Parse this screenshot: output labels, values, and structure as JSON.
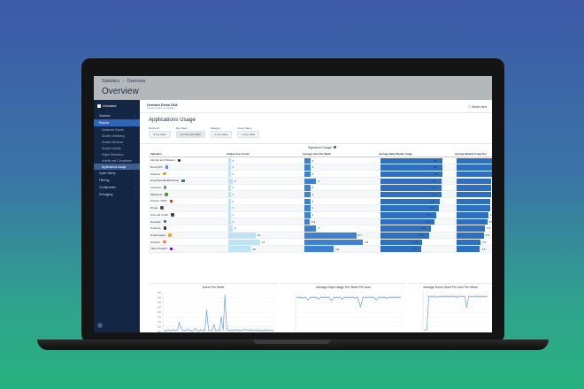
{
  "header": {
    "breadcrumb": [
      "Statistics",
      "Overview"
    ],
    "breadcrumb_sep": "›",
    "title": "Overview"
  },
  "sidebar": {
    "brand": "Linewize",
    "items": [
      {
        "label": "Statistics",
        "chevron": "›",
        "active": false,
        "sub": false
      },
      {
        "label": "Reports",
        "chevron": "⌄",
        "active": true,
        "sub": false
      },
      {
        "label": "Advanced Search",
        "active": false,
        "sub": true
      },
      {
        "label": "Student Wellbeing",
        "active": false,
        "sub": true
      },
      {
        "label": "Student Behavior",
        "active": false,
        "sub": true
      },
      {
        "label": "Student Activity",
        "active": false,
        "sub": true
      },
      {
        "label": "Digital Distraction",
        "active": false,
        "sub": true
      },
      {
        "label": "Activity and Compliance",
        "active": false,
        "sub": true
      },
      {
        "label": "Applications Usage",
        "active": true,
        "sub": true
      },
      {
        "label": "Cyber Safety",
        "chevron": "›",
        "active": false,
        "sub": false
      },
      {
        "label": "Filtering",
        "chevron": "›",
        "active": false,
        "sub": false
      },
      {
        "label": "Configuration",
        "chevron": "›",
        "active": false,
        "sub": false
      },
      {
        "label": "Debugging",
        "chevron": "›",
        "active": false,
        "sub": false
      }
    ],
    "collapse_icon": "‹"
  },
  "main": {
    "org_name": "Linewize Demo USA",
    "org_sub": "Sample district, somewhere",
    "whats_new": "What's New",
    "section_title": "Applications Usage",
    "filters": [
      {
        "label": "Device ID",
        "value": "is any value"
      },
      {
        "label": "Day Week",
        "value": "is in the year 2023"
      },
      {
        "label": "Category",
        "value": "is any value"
      },
      {
        "label": "Group Name",
        "value": "is any value"
      }
    ]
  },
  "table": {
    "title": "Signature Usage",
    "columns": [
      "Signature",
      "Unique User Count",
      "Average Uses Per Week",
      "Average Daily Weekly Usage",
      "Average Weekly Usage Per"
    ],
    "max": {
      "unique": 14,
      "uses": 9.8,
      "daily": 6.8,
      "weekly": 6.8
    },
    "rows": [
      {
        "name": "Alcohol and Tobacco",
        "icon": "bottle-icon",
        "color": "#333333",
        "unique": 1,
        "uses": 1.0,
        "daily": 6.8,
        "weekly": 6.8
      },
      {
        "name": "Nord VPN",
        "icon": "nordvpn-icon",
        "color": "#4687ff",
        "unique": 1,
        "uses": 1.0,
        "daily": 6.8,
        "weekly": 6.8
      },
      {
        "name": "Ultrasurf",
        "icon": "ultrasurf-icon",
        "color": "#e0a32a",
        "unique": 1,
        "uses": 1.0,
        "daily": 6.8,
        "weekly": 6.8
      },
      {
        "name": "Encyclopedia Britannica",
        "icon": "britannica-icon",
        "color": "#2f6fb5",
        "unique": 2,
        "uses": 2.0,
        "daily": 6.7,
        "weekly": 6.7
      },
      {
        "name": "Learning",
        "icon": "book-icon",
        "color": "#7a8ea8",
        "unique": 1,
        "uses": 1.0,
        "daily": 6.7,
        "weekly": 6.7
      },
      {
        "name": "Marijuana",
        "icon": "leaf-icon",
        "color": "#4c9a2a",
        "unique": 1,
        "uses": 1.0,
        "daily": 6.7,
        "weekly": 6.7
      },
      {
        "name": "Choceu VPNs",
        "icon": "vpn-icon",
        "color": "#c0392b",
        "unique": 1,
        "uses": 1.0,
        "daily": 6.5,
        "weekly": 6.5
      },
      {
        "name": "Drugs",
        "icon": "pill-icon",
        "color": "#555555",
        "unique": 1,
        "uses": 1.0,
        "daily": 6.4,
        "weekly": 6.4
      },
      {
        "name": "Arts and Crafts",
        "icon": "brush-icon",
        "color": "#444444",
        "unique": 1,
        "uses": 1.0,
        "daily": 6.1,
        "weekly": 6.1
      },
      {
        "name": "Gravatar",
        "icon": "gravatar-icon",
        "color": "#1e73be",
        "unique": 1,
        "uses": 0.9,
        "daily": 5.9,
        "weekly": 5.9
      },
      {
        "name": "Celebrity",
        "icon": "camera-icon",
        "color": "#333333",
        "unique": 2,
        "uses": 2.0,
        "daily": 5.5,
        "weekly": 5.5
      },
      {
        "name": "Snapengage",
        "icon": "snapengage-icon",
        "color": "#f5a623",
        "unique": 12,
        "uses": 8.7,
        "daily": 5.3,
        "weekly": 5.3
      },
      {
        "name": "Hubspot",
        "icon": "hubspot-icon",
        "color": "#ff7a59",
        "unique": 14,
        "uses": 9.8,
        "daily": 4.6,
        "weekly": 4.6
      },
      {
        "name": "Yahoo Search",
        "icon": "yahoo-icon",
        "color": "#6001d2",
        "unique": 10,
        "uses": 4.9,
        "daily": 4.5,
        "weekly": 4.5
      }
    ]
  },
  "chart_data": [
    {
      "type": "line",
      "title": "Users Per Week",
      "ylim": [
        0,
        260
      ],
      "y_ticks": [
        "260",
        "240",
        "220",
        "200",
        "180",
        "160",
        "140",
        "120",
        "100"
      ],
      "values": [
        4,
        6,
        10,
        5,
        8,
        12,
        6,
        9,
        60,
        22,
        8,
        5,
        10,
        14,
        6,
        4,
        9,
        18,
        7,
        5,
        12,
        8,
        6,
        140,
        10,
        6,
        8,
        45,
        7,
        10,
        5,
        95,
        12,
        240,
        14,
        8,
        6,
        10,
        7,
        12,
        9,
        6,
        8,
        10,
        14,
        10,
        8,
        12,
        6,
        9,
        7,
        10,
        5,
        8,
        6,
        12,
        9,
        7,
        10,
        6
      ],
      "color": "#5b8fd1"
    },
    {
      "type": "line",
      "title": "Average Days Usage Per Week Per User",
      "ylim": [
        0,
        5
      ],
      "values": [
        4.4,
        4.4,
        4.3,
        4.4,
        4.1,
        4.4,
        4.4,
        4.4,
        4.2,
        4.4,
        4.4,
        4.4,
        4.4,
        4.0,
        4.4,
        4.4,
        4.4,
        4.2,
        4.4,
        4.4,
        4.4,
        4.4,
        4.3,
        4.4,
        3.2,
        4.4,
        4.4,
        4.4,
        4.4,
        4.4,
        4.1,
        4.4,
        4.4,
        4.4,
        4.3,
        4.4,
        4.4,
        4.4,
        4.4,
        4.4
      ],
      "color": "#5b8fd1"
    },
    {
      "type": "line",
      "title": "Average Hours Used Per User Per Week",
      "ylim": [
        0,
        5
      ],
      "values": [
        0.2,
        0.2,
        4.5,
        4.5,
        4.5,
        4.5,
        4.4,
        4.5,
        4.5,
        4.5,
        4.5,
        4.5,
        4.5,
        4.5,
        4.5,
        4.5,
        4.4,
        4.5,
        4.5,
        4.5,
        4.5,
        3.1,
        4.5,
        4.5,
        4.5,
        4.5,
        4.5,
        4.5,
        4.5,
        4.5,
        4.5,
        4.5
      ],
      "color": "#5b8fd1"
    }
  ]
}
